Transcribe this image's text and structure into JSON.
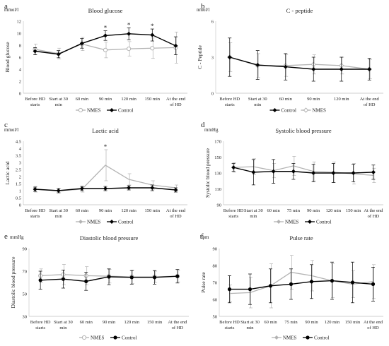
{
  "legend_labels": {
    "nmes": "NMES",
    "control": "Control"
  },
  "colors": {
    "nmes": "#b3b3b3",
    "control": "#000000",
    "axis": "#bfbfbf",
    "text": "#222222"
  },
  "chart_data": [
    {
      "panel": "a",
      "type": "line",
      "title": "Blood glucose",
      "unit": "mmol/l",
      "ylabel": "Blood glucose",
      "xlabel": "",
      "categories": [
        "Before HD starts",
        "Start at 30 min",
        "60 min",
        "90 min",
        "120 min",
        "150 min",
        "At the end of HD"
      ],
      "ylim": [
        0,
        12
      ],
      "yticks": [
        0,
        2,
        4,
        6,
        8,
        10,
        12
      ],
      "grid": false,
      "legend_position": "bottom",
      "legend_order": [
        "nmes",
        "control"
      ],
      "series": [
        {
          "key": "nmes",
          "name": "NMES",
          "marker": "open-circle",
          "values": [
            7.3,
            6.6,
            8.2,
            7.2,
            7.4,
            7.5,
            7.6
          ],
          "errors": [
            0.9,
            0.9,
            1.1,
            1.3,
            1.2,
            1.7,
            2.6
          ]
        },
        {
          "key": "control",
          "name": "Control",
          "marker": "filled-diamond",
          "values": [
            7.0,
            6.5,
            8.3,
            9.6,
            9.9,
            9.7,
            7.9
          ],
          "errors": [
            0.6,
            0.6,
            0.8,
            0.8,
            1.0,
            1.0,
            1.5
          ]
        }
      ],
      "annotations": [
        {
          "text": "*",
          "index": 3
        },
        {
          "text": "*",
          "index": 4
        },
        {
          "text": "*",
          "index": 5
        }
      ]
    },
    {
      "panel": "b",
      "type": "line",
      "title": "C - peptide",
      "unit": "nmol/l",
      "ylabel": "C - Peptide",
      "xlabel": "",
      "categories": [
        "Before HD starts",
        "Start at 30 min",
        "60 min",
        "90 min",
        "120 min",
        "At the end of HD"
      ],
      "ylim": [
        0,
        6
      ],
      "yticks": [
        0,
        3,
        6
      ],
      "grid": false,
      "legend_position": "bottom",
      "legend_order": [
        "control",
        "nmes"
      ],
      "series": [
        {
          "key": "nmes",
          "name": "NMES",
          "marker": "open-diamond",
          "values": [
            3.0,
            2.3,
            2.3,
            2.4,
            2.3,
            2.0
          ],
          "errors": [
            1.2,
            1.0,
            0.9,
            0.8,
            0.7,
            0.8
          ]
        },
        {
          "key": "control",
          "name": "Control",
          "marker": "filled-diamond",
          "values": [
            3.0,
            2.35,
            2.2,
            2.0,
            2.0,
            2.0
          ],
          "errors": [
            1.6,
            1.2,
            1.1,
            1.0,
            1.0,
            0.9
          ]
        }
      ],
      "annotations": []
    },
    {
      "panel": "c",
      "type": "line",
      "title": "Lactic acid",
      "unit": "mmol/l",
      "ylabel": "Lactic acid",
      "xlabel": "",
      "categories": [
        "Before HD starts",
        "Start at 30 min",
        "60 min",
        "90 min",
        "120 min",
        "150 min",
        "At the end of HD"
      ],
      "ylim": [
        0,
        4.5
      ],
      "yticks": [
        0,
        0.5,
        1,
        1.5,
        2,
        2.5,
        3,
        3.5,
        4,
        4.5
      ],
      "grid": false,
      "legend_position": "bottom",
      "legend_order": [
        "nmes",
        "control"
      ],
      "series": [
        {
          "key": "nmes",
          "name": "NMES",
          "marker": "none",
          "values": [
            1.1,
            1.0,
            1.1,
            2.8,
            1.8,
            1.4,
            1.2
          ],
          "errors": [
            0.2,
            0.15,
            0.2,
            1.1,
            0.4,
            0.3,
            0.2
          ]
        },
        {
          "key": "control",
          "name": "Control",
          "marker": "filled-diamond",
          "values": [
            1.1,
            1.0,
            1.15,
            1.15,
            1.2,
            1.2,
            1.05
          ],
          "errors": [
            0.15,
            0.15,
            0.15,
            0.15,
            0.15,
            0.2,
            0.15
          ]
        }
      ],
      "annotations": [
        {
          "text": "*",
          "index": 3
        }
      ]
    },
    {
      "panel": "d",
      "type": "line",
      "title": "Systolic blood pressure",
      "unit": "mmHg",
      "ylabel": "Systolic blood pressure",
      "xlabel": "",
      "categories": [
        "Before HD starts",
        "Start at 30 min",
        "60 min",
        "75 min",
        "90 min",
        "120 min",
        "150 min",
        "At the end of HD"
      ],
      "ylim": [
        90,
        170
      ],
      "yticks": [
        90,
        110,
        130,
        150,
        170
      ],
      "grid": false,
      "legend_position": "bottom",
      "legend_order": [
        "nmes",
        "control"
      ],
      "series": [
        {
          "key": "nmes",
          "name": "NMES",
          "marker": "none",
          "values": [
            137,
            138,
            133,
            139,
            132,
            131,
            129,
            127
          ],
          "errors": [
            6,
            10,
            9,
            12,
            12,
            13,
            13,
            9
          ]
        },
        {
          "key": "control",
          "name": "Control",
          "marker": "filled-diamond",
          "values": [
            137,
            131,
            132,
            132,
            130,
            130,
            130,
            131
          ],
          "errors": [
            5,
            16,
            15,
            10,
            11,
            12,
            11,
            9
          ]
        }
      ],
      "annotations": []
    },
    {
      "panel": "e",
      "type": "line",
      "title": "Diastolic blood pressure",
      "unit": "mmHg",
      "ylabel": "Diastolic blood pressure",
      "xlabel": "",
      "categories": [
        "Before HD starts",
        "Start at 30 min",
        "60 min",
        "90 min",
        "120 min",
        "150 min",
        "At the end of HD"
      ],
      "ylim": [
        30,
        90
      ],
      "yticks": [
        30,
        50,
        70,
        90
      ],
      "grid": false,
      "legend_position": "bottom",
      "legend_order": [
        "nmes",
        "control"
      ],
      "series": [
        {
          "key": "nmes",
          "name": "NMES",
          "marker": "open-circle",
          "values": [
            66,
            67,
            66,
            65.5,
            65,
            65,
            65.5
          ],
          "errors": [
            6,
            9,
            8,
            6,
            6,
            5,
            5
          ]
        },
        {
          "key": "control",
          "name": "Control",
          "marker": "filled-circle",
          "values": [
            62,
            63,
            61,
            65,
            64.5,
            64.5,
            65.5
          ],
          "errors": [
            8,
            8,
            8,
            7,
            6,
            6,
            6
          ]
        }
      ],
      "annotations": []
    },
    {
      "panel": "f",
      "type": "line",
      "title": "Pulse rate",
      "unit": "bpm",
      "ylabel": "Pulse rate",
      "xlabel": "",
      "categories": [
        "Before HD starts",
        "Start at 30 min",
        "60 min",
        "75 min",
        "90 min",
        "120 min",
        "150 min",
        "At the end of HD"
      ],
      "ylim": [
        50,
        90
      ],
      "yticks": [
        50,
        60,
        70,
        80,
        90
      ],
      "grid": false,
      "legend_position": "bottom",
      "legend_order": [
        "nmes",
        "control"
      ],
      "series": [
        {
          "key": "nmes",
          "name": "NMES",
          "marker": "none",
          "values": [
            63.5,
            64,
            68,
            76,
            74,
            71,
            69,
            70.5
          ],
          "errors": [
            5,
            9,
            13,
            10,
            9,
            10,
            8,
            10
          ]
        },
        {
          "key": "control",
          "name": "Control",
          "marker": "filled-circle",
          "values": [
            66,
            66,
            68,
            69,
            70.5,
            71,
            70,
            69
          ],
          "errors": [
            8,
            9,
            10,
            9,
            10,
            11,
            12,
            10
          ]
        }
      ],
      "annotations": []
    }
  ]
}
